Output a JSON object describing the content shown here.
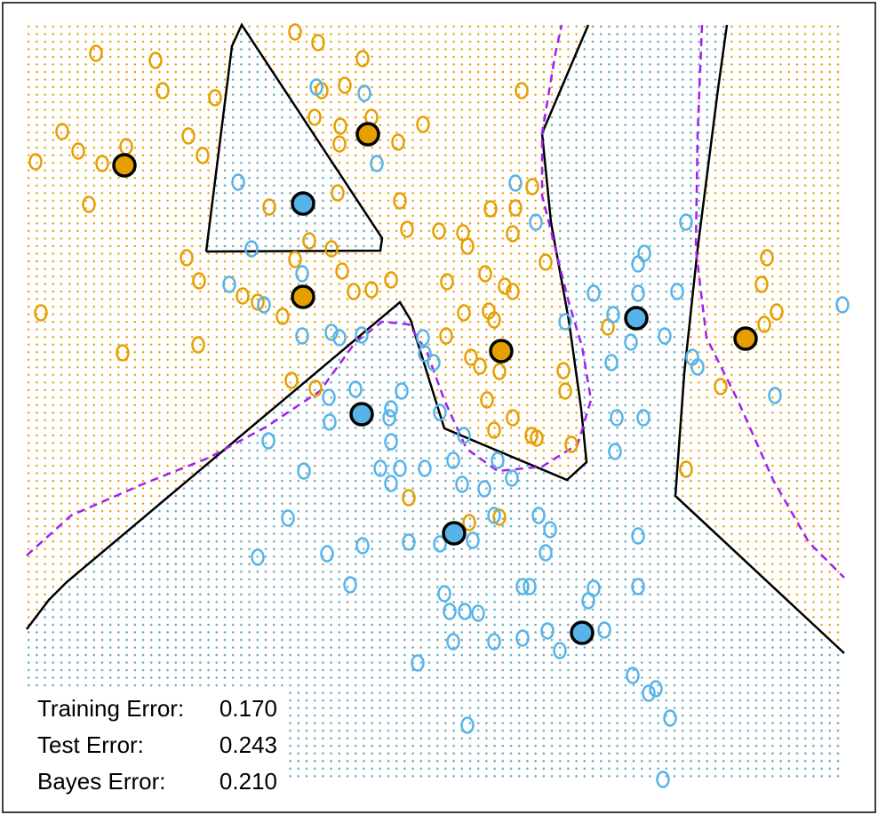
{
  "chart_data": {
    "type": "scatter",
    "xlim": [
      30,
      950
    ],
    "ylim": [
      880,
      28
    ],
    "region_colors": [
      "#e69f00",
      "#56b4e9"
    ],
    "series": [
      {
        "color": "#e69f00",
        "filled": false,
        "points": [
          [
            108,
            60
          ],
          [
            175,
            68
          ],
          [
            183,
            102
          ],
          [
            242,
            110
          ],
          [
            332,
            36
          ],
          [
            358,
            48
          ],
          [
            408,
            66
          ],
          [
            388,
            96
          ],
          [
            362,
            102
          ],
          [
            354,
            132
          ],
          [
            383,
            142
          ],
          [
            418,
            132
          ],
          [
            476,
            140
          ],
          [
            448,
            160
          ],
          [
            382,
            162
          ],
          [
            70,
            148
          ],
          [
            40,
            182
          ],
          [
            88,
            170
          ],
          [
            115,
            184
          ],
          [
            142,
            165
          ],
          [
            212,
            153
          ],
          [
            228,
            175
          ],
          [
            100,
            230
          ],
          [
            303,
            233
          ],
          [
            380,
            217
          ],
          [
            450,
            226
          ],
          [
            458,
            258
          ],
          [
            494,
            260
          ],
          [
            521,
            262
          ],
          [
            526,
            277
          ],
          [
            552,
            235
          ],
          [
            580,
            234
          ],
          [
            577,
            263
          ],
          [
            599,
            210
          ],
          [
            587,
            102
          ],
          [
            614,
            295
          ],
          [
            210,
            290
          ],
          [
            224,
            316
          ],
          [
            273,
            333
          ],
          [
            290,
            340
          ],
          [
            318,
            356
          ],
          [
            332,
            292
          ],
          [
            348,
            271
          ],
          [
            373,
            280
          ],
          [
            385,
            305
          ],
          [
            398,
            328
          ],
          [
            418,
            326
          ],
          [
            440,
            315
          ],
          [
            503,
            317
          ],
          [
            568,
            322
          ],
          [
            577,
            328
          ],
          [
            546,
            308
          ],
          [
            522,
            352
          ],
          [
            550,
            350
          ],
          [
            556,
            360
          ],
          [
            502,
            378
          ],
          [
            530,
            402
          ],
          [
            562,
            418
          ],
          [
            540,
            412
          ],
          [
            634,
            417
          ],
          [
            636,
            440
          ],
          [
            548,
            450
          ],
          [
            577,
            470
          ],
          [
            556,
            484
          ],
          [
            598,
            490
          ],
          [
            604,
            493
          ],
          [
            643,
            500
          ],
          [
            460,
            560
          ],
          [
            528,
            588
          ],
          [
            562,
            582
          ],
          [
            684,
            368
          ],
          [
            46,
            352
          ],
          [
            138,
            397
          ],
          [
            223,
            388
          ],
          [
            328,
            428
          ],
          [
            355,
            437
          ],
          [
            863,
            290
          ],
          [
            857,
            320
          ],
          [
            874,
            351
          ],
          [
            860,
            365
          ],
          [
            811,
            435
          ],
          [
            772,
            528
          ]
        ]
      },
      {
        "color": "#56b4e9",
        "filled": false,
        "points": [
          [
            356,
            98
          ],
          [
            410,
            105
          ],
          [
            424,
            184
          ],
          [
            268,
            205
          ],
          [
            580,
            206
          ],
          [
            603,
            250
          ],
          [
            772,
            250
          ],
          [
            725,
            285
          ],
          [
            718,
            297
          ],
          [
            283,
            280
          ],
          [
            340,
            308
          ],
          [
            258,
            320
          ],
          [
            297,
            343
          ],
          [
            340,
            378
          ],
          [
            373,
            374
          ],
          [
            382,
            380
          ],
          [
            407,
            377
          ],
          [
            476,
            380
          ],
          [
            478,
            398
          ],
          [
            488,
            408
          ],
          [
            668,
            330
          ],
          [
            718,
            330
          ],
          [
            762,
            328
          ],
          [
            690,
            354
          ],
          [
            636,
            362
          ],
          [
            748,
            378
          ],
          [
            710,
            385
          ],
          [
            688,
            408
          ],
          [
            779,
            402
          ],
          [
            785,
            413
          ],
          [
            948,
            343
          ],
          [
            872,
            445
          ],
          [
            370,
            447
          ],
          [
            400,
            438
          ],
          [
            440,
            460
          ],
          [
            452,
            440
          ],
          [
            371,
            475
          ],
          [
            438,
            470
          ],
          [
            440,
            497
          ],
          [
            302,
            496
          ],
          [
            495,
            464
          ],
          [
            522,
            490
          ],
          [
            510,
            518
          ],
          [
            560,
            518
          ],
          [
            576,
            538
          ],
          [
            478,
            527
          ],
          [
            450,
            527
          ],
          [
            428,
            527
          ],
          [
            440,
            544
          ],
          [
            520,
            545
          ],
          [
            545,
            550
          ],
          [
            342,
            530
          ],
          [
            324,
            583
          ],
          [
            368,
            623
          ],
          [
            408,
            614
          ],
          [
            460,
            610
          ],
          [
            495,
            612
          ],
          [
            532,
            608
          ],
          [
            556,
            580
          ],
          [
            606,
            580
          ],
          [
            619,
            596
          ],
          [
            614,
            622
          ],
          [
            694,
            470
          ],
          [
            724,
            470
          ],
          [
            692,
            508
          ],
          [
            718,
            603
          ],
          [
            290,
            627
          ],
          [
            394,
            658
          ],
          [
            500,
            668
          ],
          [
            506,
            688
          ],
          [
            523,
            688
          ],
          [
            538,
            690
          ],
          [
            588,
            660
          ],
          [
            596,
            660
          ],
          [
            668,
            662
          ],
          [
            662,
            676
          ],
          [
            718,
            660
          ],
          [
            470,
            746
          ],
          [
            510,
            722
          ],
          [
            556,
            722
          ],
          [
            588,
            718
          ],
          [
            616,
            710
          ],
          [
            630,
            732
          ],
          [
            680,
            709
          ],
          [
            712,
            760
          ],
          [
            738,
            775
          ],
          [
            730,
            780
          ],
          [
            754,
            808
          ],
          [
            526,
            816
          ],
          [
            746,
            877
          ]
        ]
      },
      {
        "color": "#e69f00",
        "filled": true,
        "points": [
          [
            140,
            186
          ],
          [
            414,
            151
          ],
          [
            341,
            334
          ],
          [
            564,
            395
          ],
          [
            839,
            381
          ]
        ]
      },
      {
        "color": "#56b4e9",
        "filled": true,
        "points": [
          [
            341,
            229
          ],
          [
            716,
            358
          ],
          [
            407,
            466
          ],
          [
            511,
            600
          ],
          [
            655,
            712
          ]
        ]
      }
    ],
    "lines": [
      {
        "color": "#000000",
        "dashed": false,
        "points": [
          [
            232,
            283
          ],
          [
            261,
            52
          ],
          [
            272,
            28
          ],
          [
            430,
            268
          ],
          [
            428,
            282
          ],
          [
            232,
            283
          ]
        ]
      },
      {
        "color": "#000000",
        "dashed": false,
        "points": [
          [
            30,
            708
          ],
          [
            55,
            675
          ],
          [
            75,
            655
          ],
          [
            450,
            340
          ],
          [
            462,
            360
          ],
          [
            500,
            482
          ],
          [
            638,
            540
          ],
          [
            660,
            520
          ],
          [
            654,
            460
          ],
          [
            640,
            360
          ],
          [
            620,
            250
          ],
          [
            610,
            150
          ],
          [
            662,
            28
          ]
        ]
      },
      {
        "color": "#000000",
        "dashed": false,
        "points": [
          [
            818,
            28
          ],
          [
            808,
            100
          ],
          [
            785,
            280
          ],
          [
            770,
            420
          ],
          [
            760,
            558
          ],
          [
            950,
            735
          ]
        ]
      },
      {
        "color": "#a020f0",
        "dashed": true,
        "points": [
          [
            30,
            625
          ],
          [
            80,
            580
          ],
          [
            160,
            545
          ],
          [
            235,
            515
          ],
          [
            300,
            480
          ],
          [
            360,
            440
          ],
          [
            400,
            385
          ],
          [
            430,
            362
          ],
          [
            460,
            365
          ],
          [
            480,
            395
          ],
          [
            500,
            450
          ],
          [
            525,
            505
          ],
          [
            560,
            530
          ],
          [
            610,
            525
          ],
          [
            650,
            500
          ],
          [
            665,
            450
          ],
          [
            655,
            390
          ],
          [
            640,
            340
          ],
          [
            630,
            300
          ],
          [
            610,
            220
          ],
          [
            610,
            150
          ],
          [
            625,
            60
          ],
          [
            632,
            28
          ]
        ]
      },
      {
        "color": "#a020f0",
        "dashed": true,
        "points": [
          [
            790,
            28
          ],
          [
            785,
            150
          ],
          [
            783,
            280
          ],
          [
            795,
            380
          ],
          [
            830,
            450
          ],
          [
            870,
            540
          ],
          [
            910,
            610
          ],
          [
            950,
            650
          ]
        ]
      }
    ],
    "annotations": [
      {
        "label": "Training Error:",
        "value": "0.170"
      },
      {
        "label": "Test Error:",
        "value": "0.243"
      },
      {
        "label": "Bayes Error:",
        "value": "0.210"
      }
    ]
  }
}
